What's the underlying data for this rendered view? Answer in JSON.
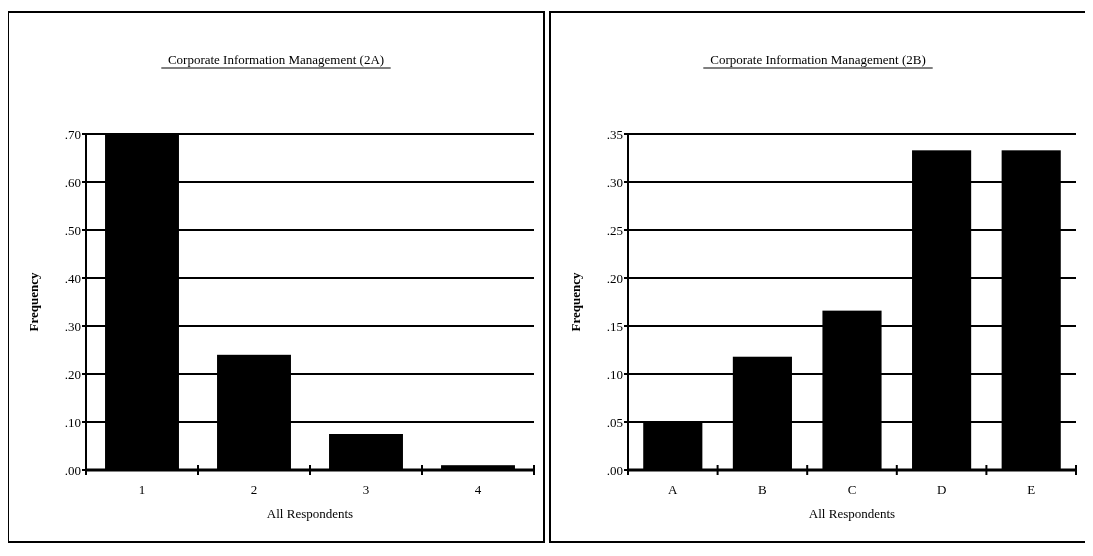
{
  "chart_data": [
    {
      "type": "bar",
      "title": "Corporate Information Management (2A)",
      "xlabel": "All Respondents",
      "ylabel": "Frequency",
      "categories": [
        "1",
        "2",
        "3",
        "4"
      ],
      "values": [
        0.7,
        0.24,
        0.075,
        0.01
      ],
      "color": "#000000",
      "ylim": [
        0,
        0.7
      ],
      "yticks": [
        {
          "value": 0,
          "label": ".00"
        },
        {
          "value": 0.1,
          "label": ".10"
        },
        {
          "value": 0.2,
          "label": ".20"
        },
        {
          "value": 0.3,
          "label": ".30"
        },
        {
          "value": 0.4,
          "label": ".40"
        },
        {
          "value": 0.5,
          "label": ".50"
        },
        {
          "value": 0.6,
          "label": ".60"
        },
        {
          "value": 0.7,
          "label": ".70"
        }
      ],
      "grid": "y"
    },
    {
      "type": "bar",
      "title": "Corporate Information Management (2B)",
      "xlabel": "All Respondents",
      "ylabel": "Frequency",
      "categories": [
        "A",
        "B",
        "C",
        "D",
        "E"
      ],
      "values": [
        0.05,
        0.118,
        0.166,
        0.333,
        0.333
      ],
      "color": "#000000",
      "ylim": [
        0,
        0.35
      ],
      "yticks": [
        {
          "value": 0,
          "label": ".00"
        },
        {
          "value": 0.05,
          "label": ".05"
        },
        {
          "value": 0.1,
          "label": ".10"
        },
        {
          "value": 0.15,
          "label": ".15"
        },
        {
          "value": 0.2,
          "label": ".20"
        },
        {
          "value": 0.25,
          "label": ".25"
        },
        {
          "value": 0.3,
          "label": ".30"
        },
        {
          "value": 0.35,
          "label": ".35"
        }
      ],
      "grid": "y"
    }
  ]
}
